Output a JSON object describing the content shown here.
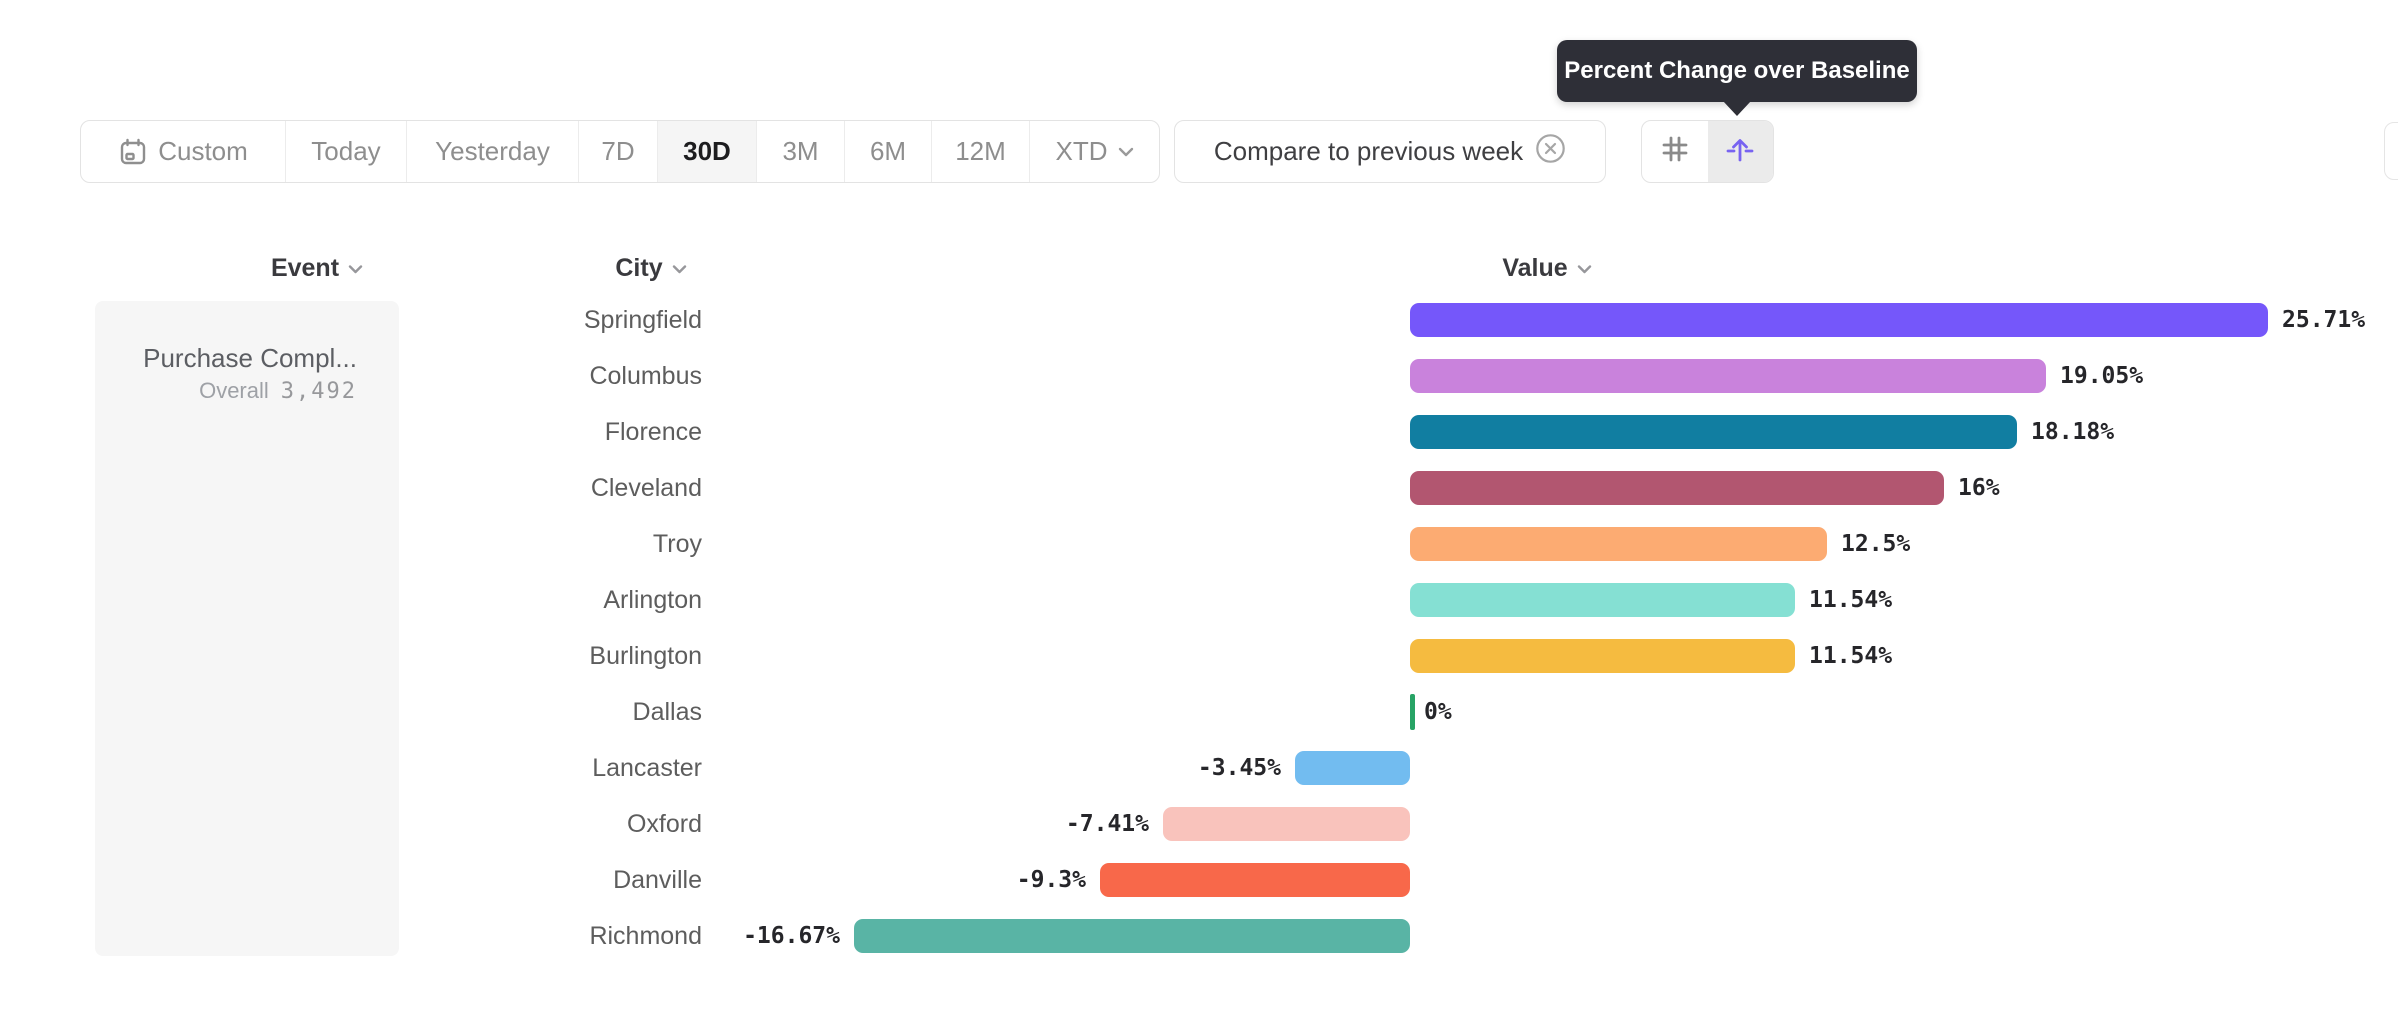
{
  "toolbar": {
    "date_ranges": [
      {
        "label": "Custom",
        "selected": false,
        "icon": "calendar-icon"
      },
      {
        "label": "Today",
        "selected": false
      },
      {
        "label": "Yesterday",
        "selected": false
      },
      {
        "label": "7D",
        "selected": false
      },
      {
        "label": "30D",
        "selected": true
      },
      {
        "label": "3M",
        "selected": false
      },
      {
        "label": "6M",
        "selected": false
      },
      {
        "label": "12M",
        "selected": false
      },
      {
        "label": "XTD",
        "selected": false,
        "icon": "chevron-down-icon"
      }
    ],
    "compare_label": "Compare to previous week",
    "view_toggle": {
      "left_icon": "grid-icon",
      "right_icon": "arrow-up-from-baseline-icon",
      "active": "right"
    }
  },
  "tooltip": {
    "text": "Percent Change over Baseline"
  },
  "columns": {
    "event": "Event",
    "city": "City",
    "value": "Value"
  },
  "event_panel": {
    "event_name": "Purchase Compl...",
    "overall_label": "Overall",
    "overall_value": "3,492"
  },
  "chart_data": {
    "type": "bar",
    "orientation": "horizontal",
    "title": "Percent Change over Baseline",
    "xlabel": "Value",
    "ylabel": "City",
    "baseline": 0,
    "xlim": [
      -17,
      26
    ],
    "categories": [
      "Springfield",
      "Columbus",
      "Florence",
      "Cleveland",
      "Troy",
      "Arlington",
      "Burlington",
      "Dallas",
      "Lancaster",
      "Oxford",
      "Danville",
      "Richmond"
    ],
    "values": [
      25.71,
      19.05,
      18.18,
      16,
      12.5,
      11.54,
      11.54,
      0,
      -3.45,
      -7.41,
      -9.3,
      -16.67
    ],
    "value_labels": [
      "25.71%",
      "19.05%",
      "18.18%",
      "16%",
      "12.5%",
      "11.54%",
      "11.54%",
      "0%",
      "-3.45%",
      "-7.41%",
      "-9.3%",
      "-16.67%"
    ],
    "bar_colors": [
      "#7557fa",
      "#c982dc",
      "#117ea1",
      "#b25670",
      "#fcab72",
      "#85e0d3",
      "#f5bb40",
      "#27a365",
      "#72bcf0",
      "#f9c3bc",
      "#f8684a",
      "#59b4a5"
    ]
  },
  "colors": {
    "accent_purple": "#7863f1",
    "tooltip_bg": "#2e2f37",
    "selected_segment_bg": "#f5f5f5",
    "panel_bg": "#f6f6f6",
    "toolbar_text": "#8e8e8e",
    "border": "#e3e3e3"
  }
}
